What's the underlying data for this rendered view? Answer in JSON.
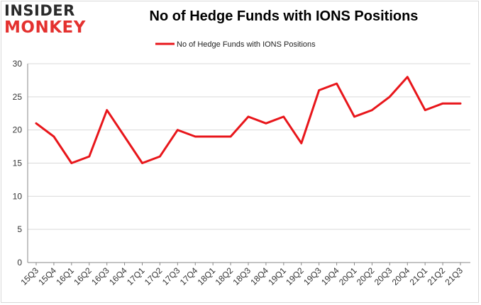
{
  "logo": {
    "line1": "INSIDER",
    "line2": "MONKEY"
  },
  "title": "No of Hedge Funds with IONS Positions",
  "colors": {
    "line": "#e8161b",
    "grid": "#d9d9d9",
    "axis": "#888888"
  },
  "chart_data": {
    "type": "line",
    "title": "No of Hedge Funds with IONS Positions",
    "xlabel": "",
    "ylabel": "",
    "ylim": [
      0,
      30
    ],
    "yticks": [
      0,
      5,
      10,
      15,
      20,
      25,
      30
    ],
    "grid": true,
    "legend_position": "top",
    "categories": [
      "15Q3",
      "15Q4",
      "16Q1",
      "16Q2",
      "16Q3",
      "16Q4",
      "17Q1",
      "17Q2",
      "17Q3",
      "17Q4",
      "18Q1",
      "18Q2",
      "18Q3",
      "18Q4",
      "19Q1",
      "19Q2",
      "19Q3",
      "19Q4",
      "20Q1",
      "20Q2",
      "20Q3",
      "20Q4",
      "21Q1",
      "21Q2",
      "21Q3"
    ],
    "series": [
      {
        "name": "No of Hedge Funds with IONS Positions",
        "values": [
          21,
          19,
          15,
          16,
          23,
          19,
          15,
          16,
          20,
          19,
          19,
          19,
          22,
          21,
          22,
          18,
          26,
          27,
          22,
          23,
          25,
          28,
          23,
          24,
          24
        ]
      }
    ]
  }
}
